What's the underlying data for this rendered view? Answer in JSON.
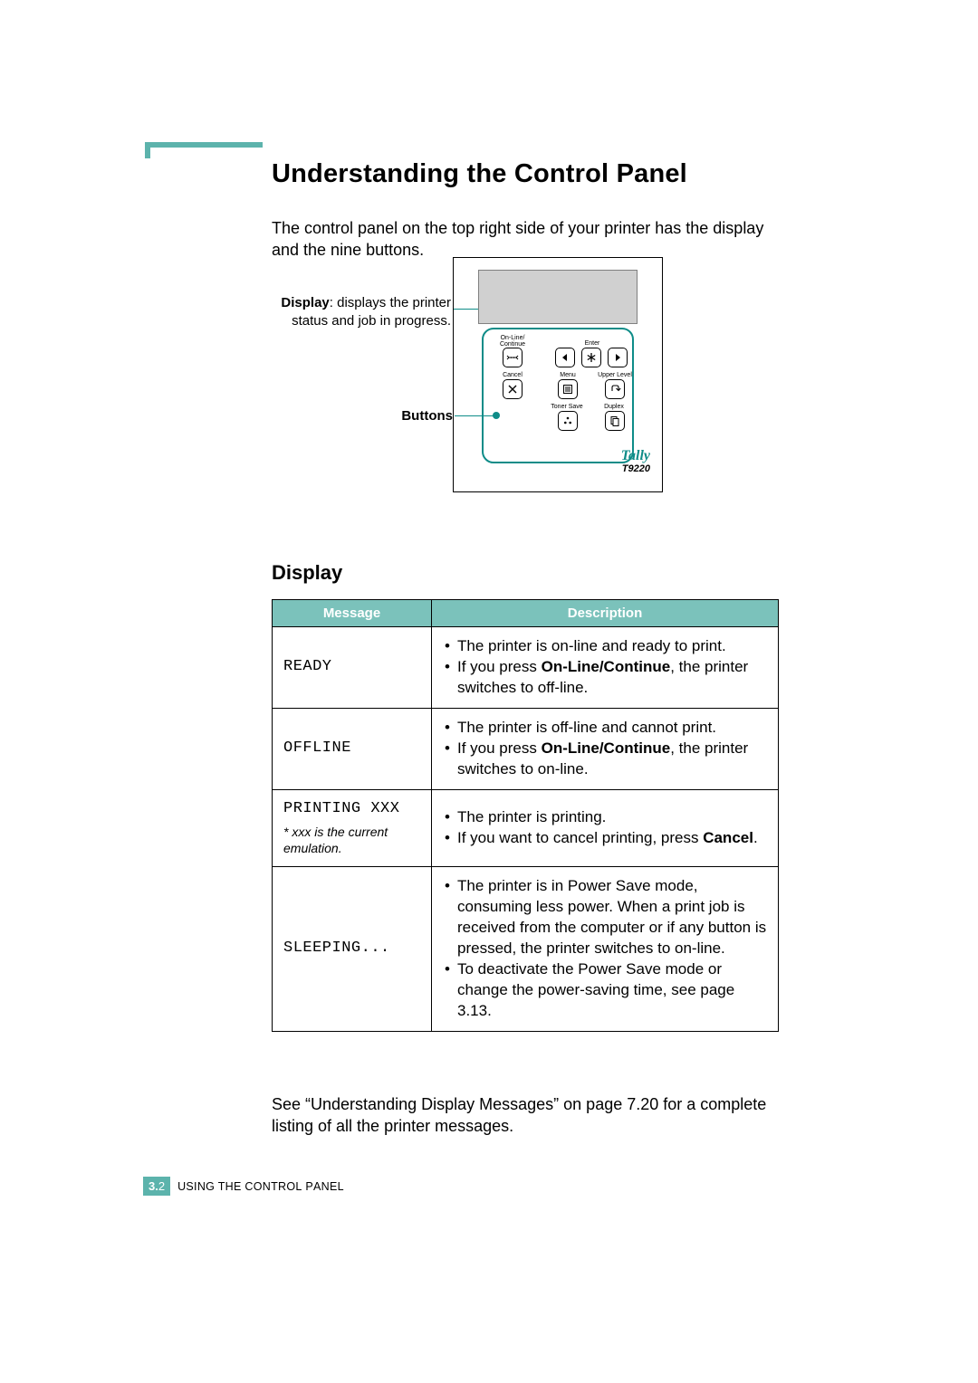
{
  "colors": {
    "accent": "#5cb3ac",
    "panel_border": "#0e8c88",
    "table_header_bg": "#7bc2bb",
    "table_header_fg": "#ffffff",
    "lcd_fill": "#d0d0d0",
    "lcd_border": "#808080"
  },
  "heading": "Understanding the Control Panel",
  "intro": "The control panel on the top right side of your printer has the display and the nine buttons.",
  "diagram": {
    "callouts": {
      "display_bold": "Display",
      "display_rest": ": displays the printer status and job in progress.",
      "buttons": "Buttons"
    },
    "buttons": {
      "online": {
        "label1": "On-Line/",
        "label2": "Continue"
      },
      "enter": "Enter",
      "cancel": "Cancel",
      "menu": "Menu",
      "upper": "Upper Level",
      "toner": "Toner Save",
      "duplex": "Duplex"
    },
    "brand": "Tally",
    "model": "T9220"
  },
  "display_heading": "Display",
  "table": {
    "headers": {
      "message": "Message",
      "description": "Description"
    },
    "rows": [
      {
        "message": "READY",
        "desc": [
          {
            "pre": "The printer is on-line and ready to print."
          },
          {
            "pre": "If you press ",
            "bold": "On-Line/Continue",
            "post": ", the printer switches to off-line."
          }
        ]
      },
      {
        "message": "OFFLINE",
        "desc": [
          {
            "pre": "The printer is off-line and cannot print."
          },
          {
            "pre": "If you press ",
            "bold": "On-Line/Continue",
            "post": ", the printer switches to on-line."
          }
        ]
      },
      {
        "message": "PRINTING XXX",
        "note": "* xxx is the current emulation.",
        "desc": [
          {
            "pre": "The printer is printing."
          },
          {
            "pre": "If you want to cancel printing, press ",
            "bold": "Cancel",
            "post": "."
          }
        ]
      },
      {
        "message": "SLEEPING...",
        "desc": [
          {
            "pre": "The printer is in Power Save mode, consuming less power. When a print job is received from the computer or if any button is pressed, the printer switches to on-line."
          },
          {
            "pre": "To deactivate the Power Save mode or change the power-saving time, see page 3.13."
          }
        ]
      }
    ]
  },
  "after_text": "See “Understanding Display Messages” on page 7.20 for a complete listing of all the printer messages.",
  "footer": {
    "chapter": "3.",
    "page": "2",
    "title_pre": "U",
    "title_sc": "SING THE",
    "title_mid": " C",
    "title_sc2": "ONTROL",
    "title_mid2": " P",
    "title_sc3": "ANEL"
  }
}
